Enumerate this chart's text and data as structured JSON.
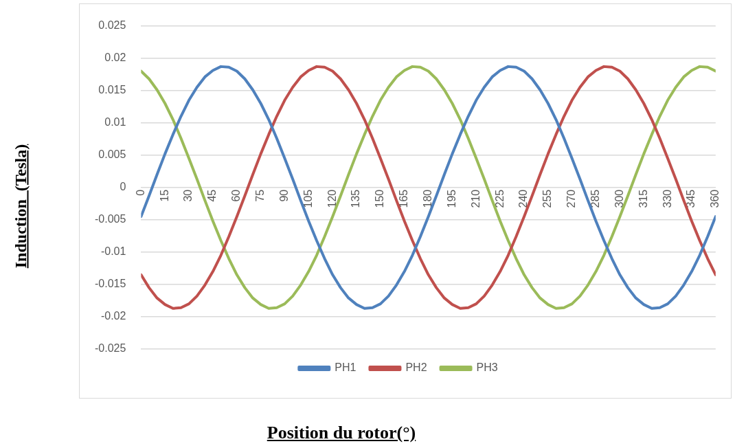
{
  "chart_data": {
    "type": "line",
    "xlabel": "Position du rotor(°)",
    "ylabel": "Induction  (Tesla)",
    "x": [
      0,
      5,
      10,
      15,
      20,
      25,
      30,
      35,
      40,
      45,
      50,
      55,
      60,
      65,
      70,
      75,
      80,
      85,
      90,
      95,
      100,
      105,
      110,
      115,
      120,
      125,
      130,
      135,
      140,
      145,
      150,
      155,
      160,
      165,
      170,
      175,
      180,
      185,
      190,
      195,
      200,
      205,
      210,
      215,
      220,
      225,
      230,
      235,
      240,
      245,
      250,
      255,
      260,
      265,
      270,
      275,
      280,
      285,
      290,
      295,
      300,
      305,
      310,
      315,
      320,
      325,
      330,
      335,
      340,
      345,
      350,
      355,
      360
    ],
    "xlim": [
      0,
      360
    ],
    "xticks": [
      0,
      15,
      30,
      45,
      60,
      75,
      90,
      105,
      120,
      135,
      150,
      165,
      180,
      195,
      210,
      225,
      240,
      255,
      270,
      285,
      300,
      315,
      330,
      345,
      360
    ],
    "ylim": [
      -0.025,
      0.025
    ],
    "yticks": [
      -0.025,
      -0.02,
      -0.015,
      -0.01,
      -0.005,
      0,
      0.005,
      0.01,
      0.015,
      0.02,
      0.025
    ],
    "grid": "y",
    "legend": "bottom",
    "marker": "none",
    "line_style": "solid",
    "series": [
      {
        "name": "PH1",
        "color": "#4f81bd",
        "values": [
          -0.0045,
          -0.0013,
          0.002,
          0.0052,
          0.0082,
          0.011,
          0.0135,
          0.0155,
          0.0171,
          0.0181,
          0.0187,
          0.0186,
          0.018,
          0.0168,
          0.0151,
          0.013,
          0.0105,
          0.0076,
          0.0045,
          0.0013,
          -0.002,
          -0.0052,
          -0.0082,
          -0.011,
          -0.0135,
          -0.0155,
          -0.0171,
          -0.0181,
          -0.0187,
          -0.0186,
          -0.018,
          -0.0168,
          -0.0151,
          -0.013,
          -0.0105,
          -0.0076,
          -0.0045,
          -0.0013,
          0.002,
          0.0052,
          0.0082,
          0.011,
          0.0135,
          0.0155,
          0.0171,
          0.0181,
          0.0187,
          0.0186,
          0.018,
          0.0168,
          0.0151,
          0.013,
          0.0105,
          0.0076,
          0.0045,
          0.0013,
          -0.002,
          -0.0052,
          -0.0082,
          -0.011,
          -0.0135,
          -0.0155,
          -0.0171,
          -0.0181,
          -0.0187,
          -0.0186,
          -0.018,
          -0.0168,
          -0.0151,
          -0.013,
          -0.0105,
          -0.0076,
          -0.0045
        ]
      },
      {
        "name": "PH2",
        "color": "#c0504d",
        "values": [
          -0.0135,
          -0.0155,
          -0.0171,
          -0.0181,
          -0.0187,
          -0.0186,
          -0.018,
          -0.0168,
          -0.0151,
          -0.013,
          -0.0105,
          -0.0076,
          -0.0045,
          -0.0013,
          0.002,
          0.0052,
          0.0082,
          0.011,
          0.0135,
          0.0155,
          0.0171,
          0.0181,
          0.0187,
          0.0186,
          0.018,
          0.0168,
          0.0151,
          0.013,
          0.0105,
          0.0076,
          0.0045,
          0.0013,
          -0.002,
          -0.0052,
          -0.0082,
          -0.011,
          -0.0135,
          -0.0155,
          -0.0171,
          -0.0181,
          -0.0187,
          -0.0186,
          -0.018,
          -0.0168,
          -0.0151,
          -0.013,
          -0.0105,
          -0.0076,
          -0.0045,
          -0.0013,
          0.002,
          0.0052,
          0.0082,
          0.011,
          0.0135,
          0.0155,
          0.0171,
          0.0181,
          0.0187,
          0.0186,
          0.018,
          0.0168,
          0.0151,
          0.013,
          0.0105,
          0.0076,
          0.0045,
          0.0013,
          -0.002,
          -0.0052,
          -0.0082,
          -0.011,
          -0.0135
        ]
      },
      {
        "name": "PH3",
        "color": "#9bbb59",
        "values": [
          0.018,
          0.0168,
          0.0151,
          0.013,
          0.0105,
          0.0076,
          0.0045,
          0.0013,
          -0.002,
          -0.0052,
          -0.0082,
          -0.011,
          -0.0135,
          -0.0155,
          -0.0171,
          -0.0181,
          -0.0187,
          -0.0186,
          -0.018,
          -0.0168,
          -0.0151,
          -0.013,
          -0.0105,
          -0.0076,
          -0.0045,
          -0.0013,
          0.002,
          0.0052,
          0.0082,
          0.011,
          0.0135,
          0.0155,
          0.0171,
          0.0181,
          0.0187,
          0.0186,
          0.018,
          0.0168,
          0.0151,
          0.013,
          0.0105,
          0.0076,
          0.0045,
          0.0013,
          -0.002,
          -0.0052,
          -0.0082,
          -0.011,
          -0.0135,
          -0.0155,
          -0.0171,
          -0.0181,
          -0.0187,
          -0.0186,
          -0.018,
          -0.0168,
          -0.0151,
          -0.013,
          -0.0105,
          -0.0076,
          -0.0045,
          -0.0013,
          0.002,
          0.0052,
          0.0082,
          0.011,
          0.0135,
          0.0155,
          0.0171,
          0.0181,
          0.0187,
          0.0186,
          0.018
        ]
      }
    ]
  }
}
